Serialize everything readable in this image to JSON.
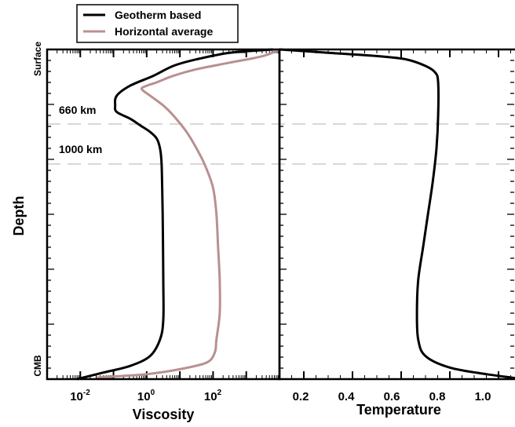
{
  "chart_data": [
    {
      "type": "line",
      "xlabel": "Viscosity",
      "ylabel": "Depth",
      "x_scale": "log",
      "xlim_log10": [
        -3,
        4
      ],
      "x_ticks": [
        {
          "exp": -2,
          "base": "10",
          "sup": "-2"
        },
        {
          "exp": 0,
          "base": "10",
          "sup": "0"
        },
        {
          "exp": 2,
          "base": "10",
          "sup": "2"
        }
      ],
      "y_end_labels": {
        "top": "Surface",
        "bottom": "CMB"
      },
      "annotations": [
        "660 km",
        "1000 km"
      ],
      "series": [
        {
          "name": "Geotherm based",
          "color": "#000000",
          "points": [
            [
              3.8,
              0
            ],
            [
              2.5,
              0.01
            ],
            [
              1.5,
              0.03
            ],
            [
              0.8,
              0.05
            ],
            [
              0.2,
              0.08
            ],
            [
              -0.5,
              0.11
            ],
            [
              -0.9,
              0.14
            ],
            [
              -0.95,
              0.17
            ],
            [
              -0.9,
              0.19
            ],
            [
              -0.5,
              0.21
            ],
            [
              -0.2,
              0.23
            ],
            [
              0.1,
              0.25
            ],
            [
              0.3,
              0.27
            ],
            [
              0.4,
              0.3
            ],
            [
              0.45,
              0.35
            ],
            [
              0.48,
              0.5
            ],
            [
              0.5,
              0.7
            ],
            [
              0.5,
              0.82
            ],
            [
              0.4,
              0.88
            ],
            [
              0.1,
              0.93
            ],
            [
              -0.5,
              0.96
            ],
            [
              -1.3,
              0.98
            ],
            [
              -2.1,
              1.0
            ]
          ]
        },
        {
          "name": "Horizontal average",
          "color": "#b89090",
          "points": [
            [
              4.0,
              0
            ],
            [
              3.5,
              0.02
            ],
            [
              2.5,
              0.04
            ],
            [
              1.5,
              0.06
            ],
            [
              0.8,
              0.08
            ],
            [
              0.3,
              0.1
            ],
            [
              0.0,
              0.11
            ],
            [
              -0.15,
              0.12
            ],
            [
              0.1,
              0.14
            ],
            [
              0.5,
              0.17
            ],
            [
              0.8,
              0.2
            ],
            [
              1.2,
              0.25
            ],
            [
              1.5,
              0.3
            ],
            [
              1.75,
              0.35
            ],
            [
              2.0,
              0.42
            ],
            [
              2.1,
              0.5
            ],
            [
              2.15,
              0.6
            ],
            [
              2.2,
              0.7
            ],
            [
              2.2,
              0.8
            ],
            [
              2.1,
              0.88
            ],
            [
              2.05,
              0.92
            ],
            [
              1.8,
              0.95
            ],
            [
              1.0,
              0.97
            ],
            [
              0.0,
              0.985
            ],
            [
              -1.5,
              0.995
            ]
          ]
        }
      ]
    },
    {
      "type": "line",
      "xlabel": "Temperature",
      "xlim": [
        0.1,
        1.1
      ],
      "x_ticks": [
        "0.2",
        "0.4",
        "0.6",
        "0.8",
        "1.0"
      ],
      "series": [
        {
          "name": "Geotherm based",
          "color": "#000000",
          "points": [
            [
              0.1,
              0.0
            ],
            [
              0.3,
              0.01
            ],
            [
              0.5,
              0.02
            ],
            [
              0.62,
              0.03
            ],
            [
              0.7,
              0.05
            ],
            [
              0.74,
              0.07
            ],
            [
              0.752,
              0.1
            ],
            [
              0.752,
              0.2
            ],
            [
              0.745,
              0.3
            ],
            [
              0.73,
              0.4
            ],
            [
              0.71,
              0.5
            ],
            [
              0.69,
              0.6
            ],
            [
              0.67,
              0.7
            ],
            [
              0.665,
              0.8
            ],
            [
              0.67,
              0.88
            ],
            [
              0.7,
              0.93
            ],
            [
              0.8,
              0.965
            ],
            [
              0.95,
              0.985
            ],
            [
              1.1,
              1.0
            ]
          ]
        }
      ]
    }
  ]
}
